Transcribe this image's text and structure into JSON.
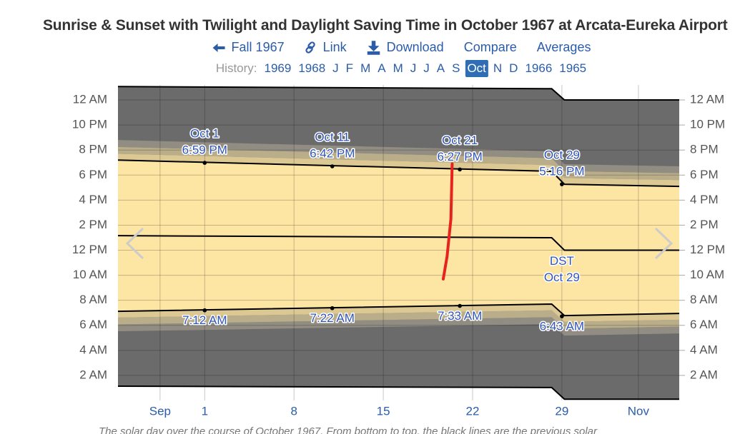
{
  "chart_data": {
    "type": "solar-day",
    "title": "Sunrise & Sunset with Twilight and Daylight Saving Time in October 1967 at Arcata-Eureka Airport",
    "x": [
      -5.8,
      28.2,
      29.2,
      38.2
    ],
    "xlim": [
      -5.8,
      38.2
    ],
    "xticks": [
      {
        "value": -2.5,
        "label": "Sep"
      },
      1,
      8,
      15,
      22,
      29,
      {
        "value": 35,
        "label": "Nov"
      }
    ],
    "ylim": [
      0,
      25.2
    ],
    "yticks": [
      {
        "value": 2,
        "label": "2 AM"
      },
      {
        "value": 4,
        "label": "4 AM"
      },
      {
        "value": 6,
        "label": "6 AM"
      },
      {
        "value": 8,
        "label": "8 AM"
      },
      {
        "value": 10,
        "label": "10 AM"
      },
      {
        "value": 12,
        "label": "12 PM"
      },
      {
        "value": 14,
        "label": "2 PM"
      },
      {
        "value": 16,
        "label": "4 PM"
      },
      {
        "value": 18,
        "label": "6 PM"
      },
      {
        "value": 20,
        "label": "8 PM"
      },
      {
        "value": 22,
        "label": "10 PM"
      },
      {
        "value": 24,
        "label": "12 AM"
      }
    ],
    "grid": true,
    "night_color": "#6b6b6b",
    "day_color": "#fde5a3",
    "line_color": "#000000",
    "lines": [
      {
        "values": [
          1.14,
          1.03,
          0.1,
          0.1
        ]
      },
      {
        "values": [
          13.16,
          13.0,
          12.0,
          12.0
        ]
      },
      {
        "values": [
          25.07,
          24.9,
          24.0,
          24.0
        ]
      }
    ],
    "twilight_colors": [
      "#dcc893",
      "#b9ad8a",
      "#928d83"
    ],
    "dawn": [
      [
        7.12,
        7.7,
        6.78,
        6.95
      ],
      [
        6.62,
        7.2,
        6.28,
        6.45
      ],
      [
        6.07,
        6.65,
        5.73,
        5.9
      ],
      [
        5.52,
        6.1,
        5.18,
        5.35
      ]
    ],
    "dusk": [
      [
        19.2,
        18.3,
        17.27,
        17.1
      ],
      [
        19.7,
        18.8,
        17.77,
        17.6
      ],
      [
        20.25,
        19.35,
        18.32,
        18.15
      ],
      [
        20.8,
        19.9,
        18.87,
        18.7
      ]
    ],
    "annotations": [
      {
        "x": 1,
        "y": 18.98,
        "lines": [
          "Oct 1",
          "6:59 PM"
        ]
      },
      {
        "x": 11,
        "y": 18.7,
        "lines": [
          "Oct 11",
          "6:42 PM"
        ]
      },
      {
        "x": 21,
        "y": 18.45,
        "lines": [
          "Oct 21",
          "6:27 PM"
        ]
      },
      {
        "x": 29,
        "y": 17.27,
        "lines": [
          "Oct 29",
          "5:16 PM"
        ]
      },
      {
        "x": 1,
        "y": 7.2,
        "lines": [
          "7:12 AM"
        ]
      },
      {
        "x": 11,
        "y": 7.37,
        "lines": [
          "7:22 AM"
        ]
      },
      {
        "x": 21,
        "y": 7.55,
        "lines": [
          "7:33 AM"
        ]
      },
      {
        "x": 29,
        "y": 6.72,
        "lines": [
          "6:43 AM"
        ]
      }
    ],
    "dst": {
      "x": 29,
      "y": 12,
      "lines": [
        "DST",
        "Oct 29"
      ]
    },
    "marker": {
      "color": "#e8231f",
      "x": [
        20.4,
        20.3,
        20.0,
        19.7
      ],
      "y": [
        18.9,
        14.5,
        11.5,
        9.7
      ]
    }
  },
  "header": {
    "nav": [
      "Fall 1967",
      "Link",
      "Download",
      "Compare",
      "Averages"
    ],
    "history_label": "History:",
    "history": [
      "1969",
      "1968",
      "J",
      "F",
      "M",
      "A",
      "M",
      "J",
      "J",
      "A",
      "S",
      "Oct",
      "N",
      "D",
      "1966",
      "1965"
    ],
    "history_selected": 11
  },
  "caption": "The solar day over the course of October 1967. From bottom to top, the black lines are the previous solar"
}
